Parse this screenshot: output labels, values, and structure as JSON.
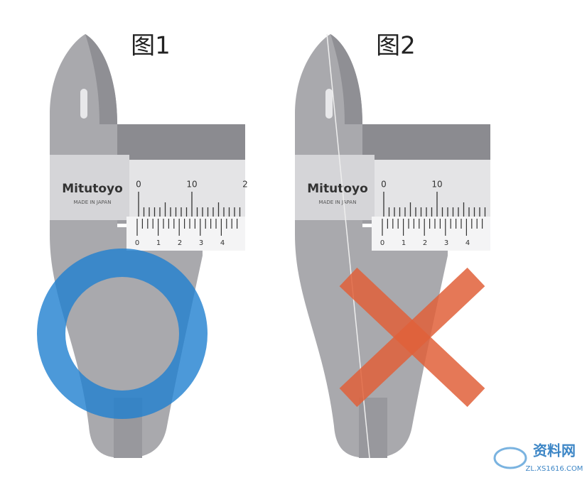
{
  "figures": [
    {
      "label": "图1",
      "brand": "Mitutoyo",
      "origin": "MADE IN JAPAN",
      "main_scale": [
        0,
        10,
        2
      ],
      "vernier_scale": [
        0,
        1,
        2,
        3,
        4
      ]
    },
    {
      "label": "图2",
      "brand": "Mitutoyo",
      "origin": "MADE IN JAPAN",
      "main_scale": [
        0,
        10
      ],
      "vernier_scale": [
        0,
        1,
        2,
        3,
        4
      ]
    }
  ],
  "watermark": {
    "name": "资料网",
    "url": "ZL.XS1616.COM"
  }
}
